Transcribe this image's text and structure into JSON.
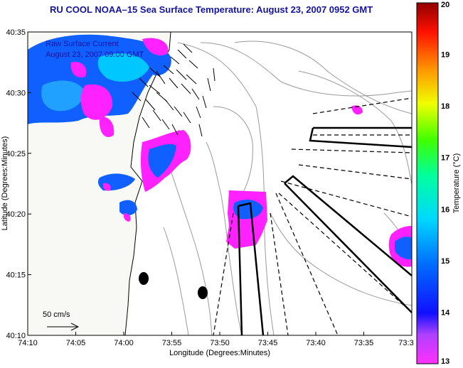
{
  "title": "RU COOL  NOAA–15  Sea Surface Temperature:  August 23, 2007 0952 GMT",
  "map": {
    "annotation_line1": "Raw Surface Current",
    "annotation_line2": "August 23, 2007 09:00 GMT",
    "scale_label": "50 cm/s",
    "xlabel": "Longitude (Degrees:Minutes)",
    "ylabel": "Latitude (Degrees:Minutes)",
    "xticks": [
      "74:10",
      "74:05",
      "74:00",
      "73:55",
      "73:50",
      "73:45",
      "73:40",
      "73:35",
      "73:3"
    ],
    "yticks": [
      "40:35",
      "40:30",
      "40:25",
      "40:20",
      "40:15",
      "40:10"
    ]
  },
  "colorbar": {
    "label": "Temperature (°C)",
    "ticks": [
      "20",
      "19",
      "18",
      "17",
      "16",
      "15",
      "14",
      "13"
    ],
    "min": 13,
    "max": 20
  },
  "colors": {
    "title": "#1414a0",
    "land": "#f8f8f4",
    "ocean": "#ffffff",
    "contour": "#9a9a9a",
    "sst_warm": "#ff22ff",
    "sst_cold": "#1030ff"
  }
}
